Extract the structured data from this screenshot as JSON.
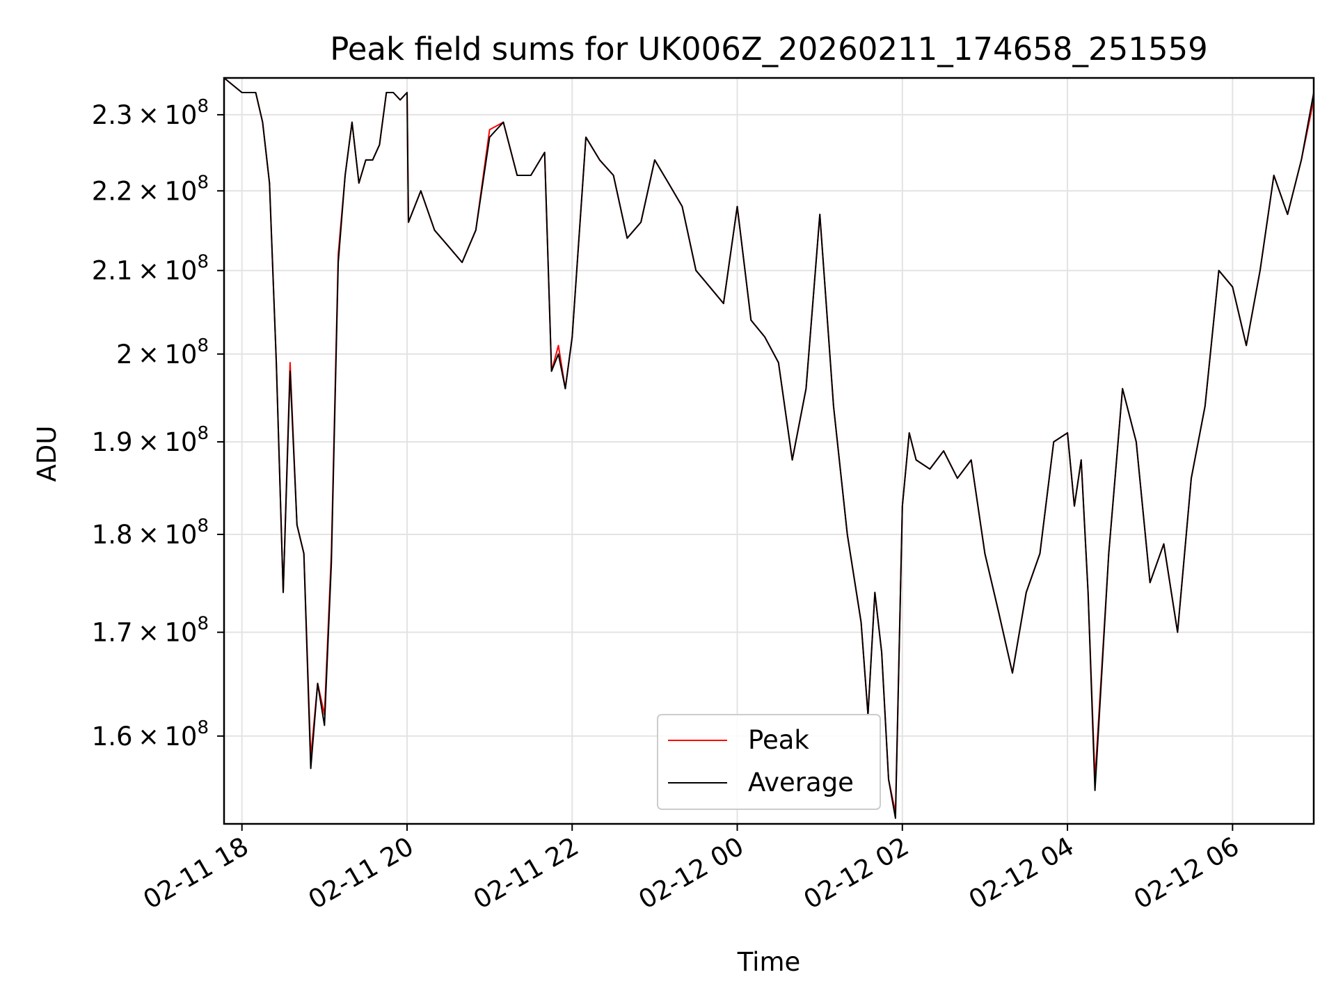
{
  "chart_data": {
    "type": "line",
    "title": "Peak field sums for UK006Z_20260211_174658_251559",
    "xlabel": "Time",
    "ylabel": "ADU",
    "yscale": "log",
    "ylim": [
      152000000,
      235000000
    ],
    "xlim": [
      "02-11 17:47",
      "02-12 06:59"
    ],
    "x_ticks": [
      "02-11 18",
      "02-11 20",
      "02-11 22",
      "02-12 00",
      "02-12 02",
      "02-12 04",
      "02-12 06"
    ],
    "y_ticks": [
      {
        "mantissa": "1.6",
        "exp": "8",
        "value": 160000000
      },
      {
        "mantissa": "1.7",
        "exp": "8",
        "value": 170000000
      },
      {
        "mantissa": "1.8",
        "exp": "8",
        "value": 180000000
      },
      {
        "mantissa": "1.9",
        "exp": "8",
        "value": 190000000
      },
      {
        "mantissa": "2",
        "exp": "8",
        "value": 200000000
      },
      {
        "mantissa": "2.1",
        "exp": "8",
        "value": 210000000
      },
      {
        "mantissa": "2.2",
        "exp": "8",
        "value": 220000000
      },
      {
        "mantissa": "2.3",
        "exp": "8",
        "value": 230000000
      }
    ],
    "grid": true,
    "legend_position": "bottom-center",
    "series": [
      {
        "name": "Peak",
        "color": "#ff0000",
        "x": [
          "02-11 17:47",
          "02-11 18:00",
          "02-11 18:10",
          "02-11 18:15",
          "02-11 18:20",
          "02-11 18:25",
          "02-11 18:30",
          "02-11 18:35",
          "02-11 18:40",
          "02-11 18:45",
          "02-11 18:50",
          "02-11 18:55",
          "02-11 19:00",
          "02-11 19:05",
          "02-11 19:10",
          "02-11 19:15",
          "02-11 19:20",
          "02-11 19:25",
          "02-11 19:30",
          "02-11 19:35",
          "02-11 19:40",
          "02-11 19:45",
          "02-11 19:50",
          "02-11 19:55",
          "02-11 20:00",
          "02-11 20:01",
          "02-11 20:10",
          "02-11 20:20",
          "02-11 20:30",
          "02-11 20:40",
          "02-11 20:50",
          "02-11 21:00",
          "02-11 21:10",
          "02-11 21:20",
          "02-11 21:30",
          "02-11 21:40",
          "02-11 21:45",
          "02-11 21:50",
          "02-11 21:55",
          "02-11 22:00",
          "02-11 22:10",
          "02-11 22:20",
          "02-11 22:30",
          "02-11 22:40",
          "02-11 22:50",
          "02-11 23:00",
          "02-11 23:10",
          "02-11 23:20",
          "02-11 23:30",
          "02-11 23:40",
          "02-11 23:50",
          "02-12 00:00",
          "02-12 00:10",
          "02-12 00:20",
          "02-12 00:30",
          "02-12 00:40",
          "02-12 00:50",
          "02-12 01:00",
          "02-12 01:10",
          "02-12 01:20",
          "02-12 01:30",
          "02-12 01:35",
          "02-12 01:40",
          "02-12 01:45",
          "02-12 01:50",
          "02-12 01:55",
          "02-12 02:00",
          "02-12 02:05",
          "02-12 02:10",
          "02-12 02:20",
          "02-12 02:30",
          "02-12 02:40",
          "02-12 02:50",
          "02-12 03:00",
          "02-12 03:10",
          "02-12 03:20",
          "02-12 03:30",
          "02-12 03:40",
          "02-12 03:50",
          "02-12 04:00",
          "02-12 04:05",
          "02-12 04:10",
          "02-12 04:15",
          "02-12 04:20",
          "02-12 04:30",
          "02-12 04:40",
          "02-12 04:50",
          "02-12 05:00",
          "02-12 05:10",
          "02-12 05:20",
          "02-12 05:30",
          "02-12 05:40",
          "02-12 05:50",
          "02-12 06:00",
          "02-12 06:10",
          "02-12 06:20",
          "02-12 06:30",
          "02-12 06:40",
          "02-12 06:50",
          "02-12 06:59"
        ],
        "values": [
          235000000,
          233000000,
          233000000,
          229000000,
          221000000,
          199000000,
          174000000,
          199000000,
          181000000,
          178000000,
          158000000,
          165000000,
          162000000,
          178000000,
          212000000,
          222000000,
          229000000,
          221000000,
          224000000,
          224000000,
          226000000,
          233000000,
          233000000,
          232000000,
          233000000,
          216000000,
          220000000,
          215000000,
          213000000,
          211000000,
          215000000,
          228000000,
          229000000,
          222000000,
          222000000,
          225000000,
          198000000,
          201000000,
          196000000,
          202000000,
          227000000,
          224000000,
          222000000,
          214000000,
          216000000,
          224000000,
          221000000,
          218000000,
          210000000,
          208000000,
          206000000,
          218000000,
          204000000,
          202000000,
          199000000,
          188000000,
          196000000,
          217000000,
          194000000,
          180000000,
          171000000,
          162000000,
          174000000,
          168000000,
          156000000,
          153000000,
          183000000,
          191000000,
          188000000,
          187000000,
          189000000,
          186000000,
          188000000,
          178000000,
          172000000,
          166000000,
          174000000,
          178000000,
          190000000,
          191000000,
          183000000,
          188000000,
          174000000,
          156000000,
          178000000,
          196000000,
          190000000,
          175000000,
          179000000,
          170000000,
          186000000,
          194000000,
          210000000,
          208000000,
          201000000,
          210000000,
          222000000,
          217000000,
          224000000,
          232000000
        ]
      },
      {
        "name": "Average",
        "color": "#000000",
        "x": [
          "02-11 17:47",
          "02-11 18:00",
          "02-11 18:10",
          "02-11 18:15",
          "02-11 18:20",
          "02-11 18:25",
          "02-11 18:30",
          "02-11 18:35",
          "02-11 18:40",
          "02-11 18:45",
          "02-11 18:50",
          "02-11 18:55",
          "02-11 19:00",
          "02-11 19:05",
          "02-11 19:10",
          "02-11 19:15",
          "02-11 19:20",
          "02-11 19:25",
          "02-11 19:30",
          "02-11 19:35",
          "02-11 19:40",
          "02-11 19:45",
          "02-11 19:50",
          "02-11 19:55",
          "02-11 20:00",
          "02-11 20:01",
          "02-11 20:10",
          "02-11 20:20",
          "02-11 20:30",
          "02-11 20:40",
          "02-11 20:50",
          "02-11 21:00",
          "02-11 21:10",
          "02-11 21:20",
          "02-11 21:30",
          "02-11 21:40",
          "02-11 21:45",
          "02-11 21:50",
          "02-11 21:55",
          "02-11 22:00",
          "02-11 22:10",
          "02-11 22:20",
          "02-11 22:30",
          "02-11 22:40",
          "02-11 22:50",
          "02-11 23:00",
          "02-11 23:10",
          "02-11 23:20",
          "02-11 23:30",
          "02-11 23:40",
          "02-11 23:50",
          "02-12 00:00",
          "02-12 00:10",
          "02-12 00:20",
          "02-12 00:30",
          "02-12 00:40",
          "02-12 00:50",
          "02-12 01:00",
          "02-12 01:10",
          "02-12 01:20",
          "02-12 01:30",
          "02-12 01:35",
          "02-12 01:40",
          "02-12 01:45",
          "02-12 01:50",
          "02-12 01:55",
          "02-12 02:00",
          "02-12 02:05",
          "02-12 02:10",
          "02-12 02:20",
          "02-12 02:30",
          "02-12 02:40",
          "02-12 02:50",
          "02-12 03:00",
          "02-12 03:10",
          "02-12 03:20",
          "02-12 03:30",
          "02-12 03:40",
          "02-12 03:50",
          "02-12 04:00",
          "02-12 04:05",
          "02-12 04:10",
          "02-12 04:15",
          "02-12 04:20",
          "02-12 04:30",
          "02-12 04:40",
          "02-12 04:50",
          "02-12 05:00",
          "02-12 05:10",
          "02-12 05:20",
          "02-12 05:30",
          "02-12 05:40",
          "02-12 05:50",
          "02-12 06:00",
          "02-12 06:10",
          "02-12 06:20",
          "02-12 06:30",
          "02-12 06:40",
          "02-12 06:50",
          "02-12 06:59"
        ],
        "values": [
          235000000,
          233000000,
          233000000,
          229000000,
          221000000,
          199000000,
          174000000,
          198000000,
          181000000,
          178000000,
          157000000,
          165000000,
          161000000,
          177000000,
          211000000,
          222000000,
          229000000,
          221000000,
          224000000,
          224000000,
          226000000,
          233000000,
          233000000,
          232000000,
          233000000,
          216000000,
          220000000,
          215000000,
          213000000,
          211000000,
          215000000,
          227000000,
          229000000,
          222000000,
          222000000,
          225000000,
          198000000,
          200000000,
          196000000,
          202000000,
          227000000,
          224000000,
          222000000,
          214000000,
          216000000,
          224000000,
          221000000,
          218000000,
          210000000,
          208000000,
          206000000,
          218000000,
          204000000,
          202000000,
          199000000,
          188000000,
          196000000,
          217000000,
          194000000,
          180000000,
          171000000,
          162000000,
          174000000,
          168000000,
          156000000,
          152500000,
          183000000,
          191000000,
          188000000,
          187000000,
          189000000,
          186000000,
          188000000,
          178000000,
          172000000,
          166000000,
          174000000,
          178000000,
          190000000,
          191000000,
          183000000,
          188000000,
          174000000,
          155000000,
          178000000,
          196000000,
          190000000,
          175000000,
          179000000,
          170000000,
          186000000,
          194000000,
          210000000,
          208000000,
          201000000,
          210000000,
          222000000,
          217000000,
          224000000,
          233000000
        ]
      }
    ]
  }
}
